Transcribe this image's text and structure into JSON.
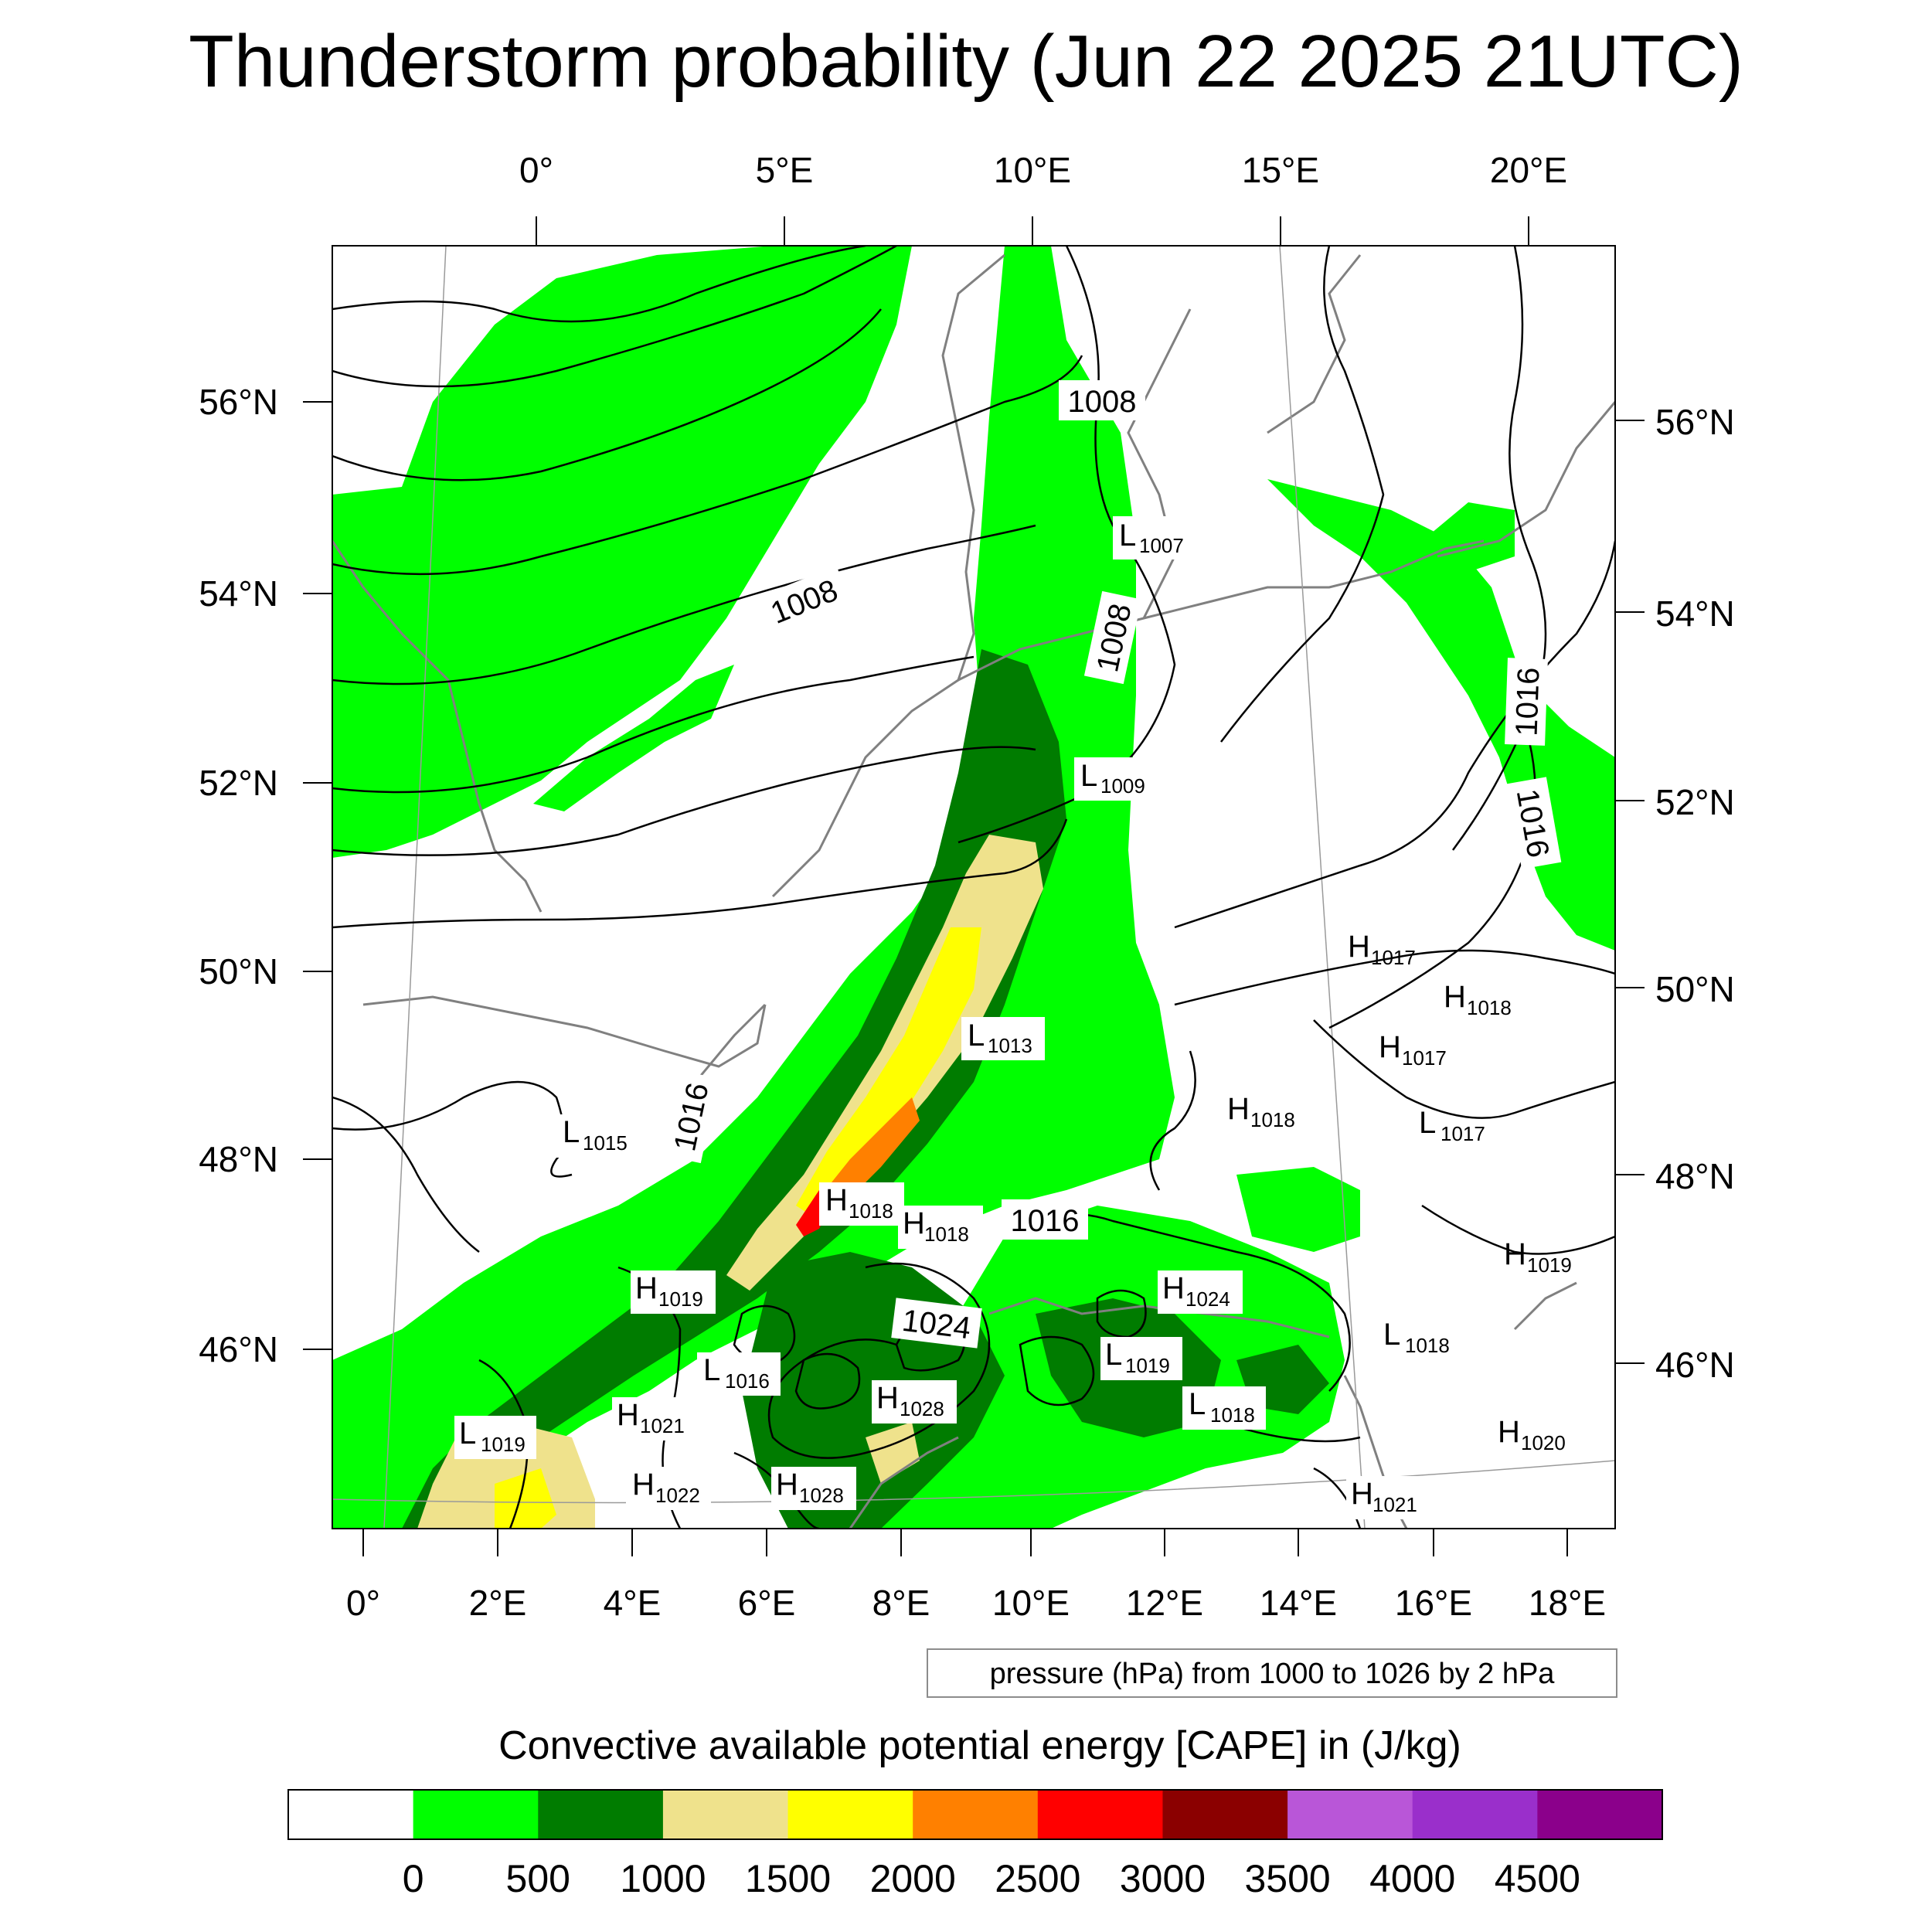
{
  "title": "Thunderstorm probability (Jun 22 2025 21UTC)",
  "map": {
    "top_lon_labels": [
      "0°",
      "5°E",
      "10°E",
      "15°E",
      "20°E"
    ],
    "bottom_lon_labels": [
      "0°",
      "2°E",
      "4°E",
      "6°E",
      "8°E",
      "10°E",
      "12°E",
      "14°E",
      "16°E",
      "18°E"
    ],
    "left_lat_labels": [
      "56°N",
      "54°N",
      "52°N",
      "50°N",
      "48°N",
      "46°N"
    ],
    "right_lat_labels": [
      "56°N",
      "54°N",
      "52°N",
      "50°N",
      "48°N",
      "46°N"
    ],
    "isobar_labels": [
      "1008",
      "1008",
      "1008",
      "1016",
      "1016",
      "1016",
      "1016",
      "1024"
    ],
    "pressure_centers": [
      {
        "type": "L",
        "value": "1007"
      },
      {
        "type": "L",
        "value": "1009"
      },
      {
        "type": "L",
        "value": "1013"
      },
      {
        "type": "L",
        "value": "1015"
      },
      {
        "type": "H",
        "value": "1017"
      },
      {
        "type": "H",
        "value": "1018"
      },
      {
        "type": "H",
        "value": "1017"
      },
      {
        "type": "H",
        "value": "1018"
      },
      {
        "type": "L",
        "value": "1017"
      },
      {
        "type": "H",
        "value": "1018"
      },
      {
        "type": "H",
        "value": "1018"
      },
      {
        "type": "H",
        "value": "1019"
      },
      {
        "type": "H",
        "value": "1019"
      },
      {
        "type": "H",
        "value": "1024"
      },
      {
        "type": "L",
        "value": "1018"
      },
      {
        "type": "L",
        "value": "1016"
      },
      {
        "type": "H",
        "value": "1021"
      },
      {
        "type": "H",
        "value": "1028"
      },
      {
        "type": "L",
        "value": "1019"
      },
      {
        "type": "L",
        "value": "1018"
      },
      {
        "type": "H",
        "value": "1020"
      },
      {
        "type": "L",
        "value": "1019"
      },
      {
        "type": "H",
        "value": "1022"
      },
      {
        "type": "H",
        "value": "1028"
      },
      {
        "type": "H",
        "value": "1021"
      }
    ],
    "cape_field_colors": {
      "0-500": "#00ff00",
      "500-1000": "#007c00",
      "1000-1500": "#efe28c",
      "1500-2000": "#ffff00",
      "2000-2500": "#ff8000",
      "2500-3000": "#ff0000"
    }
  },
  "contour_info": "pressure (hPa) from 1000 to 1026 by 2 hPa",
  "colorbar": {
    "title": "Convective available potential energy [CAPE] in (J/kg)",
    "colors": [
      "#ffffff",
      "#00ff00",
      "#007c00",
      "#efe28c",
      "#ffff00",
      "#ff8000",
      "#ff0000",
      "#8b0000",
      "#b956d8",
      "#9a2fcb",
      "#8b008b"
    ],
    "tick_labels": [
      "0",
      "500",
      "1000",
      "1500",
      "2000",
      "2500",
      "3000",
      "3500",
      "4000",
      "4500"
    ]
  }
}
